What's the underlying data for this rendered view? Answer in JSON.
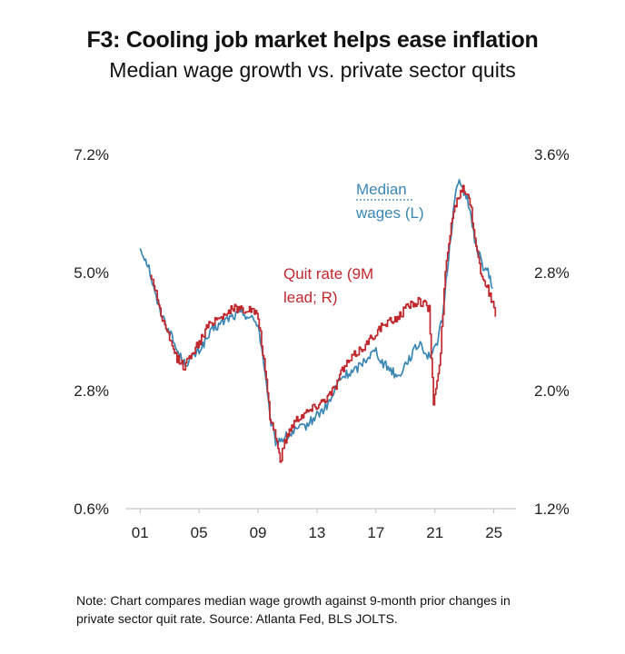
{
  "chart_data": {
    "type": "line",
    "title": "F3: Cooling job market helps ease inflation",
    "subtitle": "Median wage growth vs. private sector quits",
    "x_ticks": [
      "01",
      "05",
      "09",
      "13",
      "17",
      "21",
      "25"
    ],
    "x_tick_years": [
      2001,
      2005,
      2009,
      2013,
      2017,
      2021,
      2025
    ],
    "xlim": [
      2000.0,
      2026.5
    ],
    "y_left": {
      "ticks": [
        "7.2%",
        "5.0%",
        "2.8%",
        "0.6%"
      ],
      "lim": [
        0.6,
        7.2
      ]
    },
    "y_right": {
      "ticks": [
        "3.6%",
        "2.8%",
        "2.0%",
        "1.2%"
      ],
      "lim": [
        1.2,
        3.6
      ]
    },
    "series": [
      {
        "name": "Median wages (L)",
        "label_lines": [
          "Median",
          "wages (L)"
        ],
        "color": "#3a87b5",
        "axis": "left",
        "points": [
          [
            2001.0,
            5.45
          ],
          [
            2001.3,
            5.3
          ],
          [
            2001.6,
            5.1
          ],
          [
            2002.0,
            4.6
          ],
          [
            2002.5,
            4.2
          ],
          [
            2003.0,
            3.9
          ],
          [
            2003.5,
            3.55
          ],
          [
            2004.0,
            3.3
          ],
          [
            2004.5,
            3.4
          ],
          [
            2005.0,
            3.55
          ],
          [
            2005.5,
            3.75
          ],
          [
            2006.0,
            3.95
          ],
          [
            2006.5,
            4.05
          ],
          [
            2007.0,
            4.15
          ],
          [
            2007.5,
            4.2
          ],
          [
            2008.0,
            4.25
          ],
          [
            2008.5,
            4.15
          ],
          [
            2009.0,
            4.05
          ],
          [
            2009.4,
            3.3
          ],
          [
            2009.8,
            2.3
          ],
          [
            2010.2,
            1.85
          ],
          [
            2010.6,
            1.9
          ],
          [
            2011.0,
            1.95
          ],
          [
            2011.5,
            2.05
          ],
          [
            2012.0,
            2.1
          ],
          [
            2012.5,
            2.2
          ],
          [
            2013.0,
            2.35
          ],
          [
            2013.5,
            2.45
          ],
          [
            2014.0,
            2.65
          ],
          [
            2014.5,
            3.0
          ],
          [
            2015.0,
            3.1
          ],
          [
            2015.5,
            3.15
          ],
          [
            2016.0,
            3.3
          ],
          [
            2016.5,
            3.45
          ],
          [
            2017.0,
            3.55
          ],
          [
            2017.5,
            3.3
          ],
          [
            2018.0,
            3.2
          ],
          [
            2018.5,
            3.05
          ],
          [
            2019.0,
            3.3
          ],
          [
            2019.5,
            3.5
          ],
          [
            2020.0,
            3.7
          ],
          [
            2020.5,
            3.45
          ],
          [
            2021.0,
            3.55
          ],
          [
            2021.5,
            4.1
          ],
          [
            2022.0,
            5.5
          ],
          [
            2022.5,
            6.7
          ],
          [
            2022.8,
            6.6
          ],
          [
            2023.2,
            6.4
          ],
          [
            2023.7,
            5.6
          ],
          [
            2024.2,
            5.15
          ],
          [
            2024.6,
            5.0
          ],
          [
            2024.9,
            4.7
          ]
        ]
      },
      {
        "name": "Quit rate (9M lead; R)",
        "label_lines": [
          "Quit rate (9M",
          "lead; R)"
        ],
        "color": "#c0282e",
        "axis": "right",
        "points": [
          [
            2001.7,
            2.78
          ],
          [
            2002.0,
            2.7
          ],
          [
            2002.5,
            2.48
          ],
          [
            2003.0,
            2.34
          ],
          [
            2003.5,
            2.22
          ],
          [
            2004.0,
            2.16
          ],
          [
            2004.5,
            2.26
          ],
          [
            2005.0,
            2.32
          ],
          [
            2005.5,
            2.42
          ],
          [
            2006.0,
            2.48
          ],
          [
            2006.5,
            2.5
          ],
          [
            2007.0,
            2.54
          ],
          [
            2007.5,
            2.56
          ],
          [
            2008.0,
            2.55
          ],
          [
            2008.5,
            2.55
          ],
          [
            2009.0,
            2.5
          ],
          [
            2009.4,
            2.2
          ],
          [
            2009.8,
            1.82
          ],
          [
            2010.2,
            1.7
          ],
          [
            2010.5,
            1.52
          ],
          [
            2010.8,
            1.65
          ],
          [
            2011.2,
            1.75
          ],
          [
            2011.7,
            1.82
          ],
          [
            2012.2,
            1.85
          ],
          [
            2012.7,
            1.88
          ],
          [
            2013.2,
            1.92
          ],
          [
            2013.7,
            1.96
          ],
          [
            2014.2,
            2.02
          ],
          [
            2014.7,
            2.14
          ],
          [
            2015.2,
            2.2
          ],
          [
            2015.7,
            2.26
          ],
          [
            2016.2,
            2.3
          ],
          [
            2016.7,
            2.36
          ],
          [
            2017.2,
            2.42
          ],
          [
            2017.7,
            2.45
          ],
          [
            2018.2,
            2.48
          ],
          [
            2018.7,
            2.52
          ],
          [
            2019.2,
            2.58
          ],
          [
            2019.7,
            2.6
          ],
          [
            2020.2,
            2.6
          ],
          [
            2020.6,
            2.55
          ],
          [
            2020.9,
            1.92
          ],
          [
            2021.3,
            2.15
          ],
          [
            2021.7,
            2.8
          ],
          [
            2022.1,
            3.15
          ],
          [
            2022.5,
            3.3
          ],
          [
            2022.9,
            3.38
          ],
          [
            2023.3,
            3.32
          ],
          [
            2023.7,
            3.05
          ],
          [
            2024.1,
            2.8
          ],
          [
            2024.5,
            2.72
          ],
          [
            2024.9,
            2.58
          ],
          [
            2025.1,
            2.5
          ]
        ]
      }
    ],
    "legend": "inline labels"
  },
  "note": {
    "lines": [
      "Note: Chart compares median wage growth against 9-month prior changes in",
      "private sector quit rate. Source: Atlanta Fed, BLS JOLTS."
    ]
  }
}
